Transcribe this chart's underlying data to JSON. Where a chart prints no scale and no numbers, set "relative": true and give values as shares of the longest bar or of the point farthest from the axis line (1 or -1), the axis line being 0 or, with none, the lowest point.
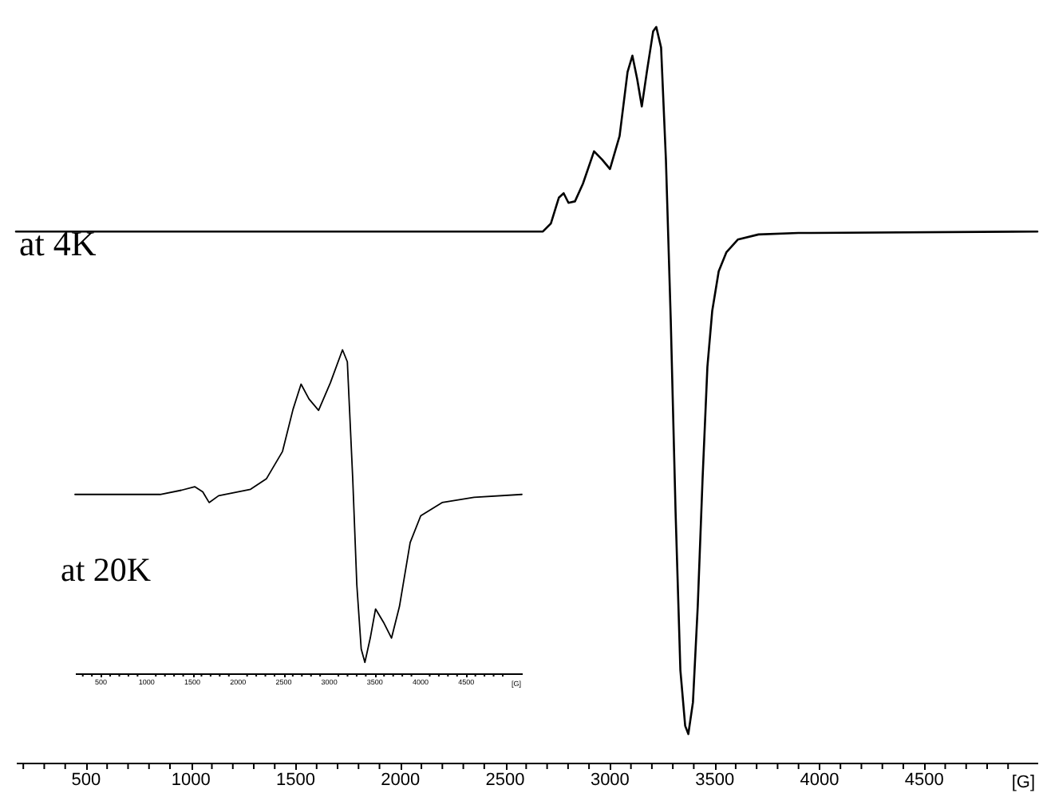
{
  "chart_data": [
    {
      "type": "line",
      "relative": true,
      "tick_labels": "x",
      "xlabel": "[G]",
      "annotations": [
        "at 4K"
      ],
      "xlim": [
        165,
        5040
      ],
      "xticks": [
        {
          "value": 200,
          "label": null
        },
        {
          "value": 300,
          "label": null
        },
        {
          "value": 400,
          "label": null
        },
        500,
        {
          "value": 600,
          "label": null
        },
        {
          "value": 700,
          "label": null
        },
        {
          "value": 800,
          "label": null
        },
        {
          "value": 900,
          "label": null
        },
        1000,
        {
          "value": 1100,
          "label": null
        },
        {
          "value": 1200,
          "label": null
        },
        {
          "value": 1300,
          "label": null
        },
        {
          "value": 1400,
          "label": null
        },
        1500,
        {
          "value": 1600,
          "label": null
        },
        {
          "value": 1700,
          "label": null
        },
        {
          "value": 1800,
          "label": null
        },
        {
          "value": 1900,
          "label": null
        },
        2000,
        {
          "value": 2100,
          "label": null
        },
        {
          "value": 2200,
          "label": null
        },
        {
          "value": 2300,
          "label": null
        },
        {
          "value": 2400,
          "label": null
        },
        2500,
        {
          "value": 2600,
          "label": null
        },
        {
          "value": 2700,
          "label": null
        },
        {
          "value": 2800,
          "label": null
        },
        {
          "value": 2900,
          "label": null
        },
        3000,
        {
          "value": 3100,
          "label": null
        },
        {
          "value": 3200,
          "label": null
        },
        {
          "value": 3300,
          "label": null
        },
        {
          "value": 3400,
          "label": null
        },
        3500,
        {
          "value": 3600,
          "label": null
        },
        {
          "value": 3700,
          "label": null
        },
        {
          "value": 3800,
          "label": null
        },
        {
          "value": 3900,
          "label": null
        },
        4000,
        {
          "value": 4100,
          "label": null
        },
        {
          "value": 4200,
          "label": null
        },
        {
          "value": 4300,
          "label": null
        },
        {
          "value": 4400,
          "label": null
        },
        4500,
        {
          "value": 4600,
          "label": null
        },
        {
          "value": 4700,
          "label": null
        },
        {
          "value": 4800,
          "label": null
        },
        {
          "value": 4900,
          "label": null
        }
      ],
      "x": [
        165,
        2680,
        2718,
        2756,
        2779,
        2802,
        2833,
        2871,
        2924,
        2962,
        3000,
        3046,
        3084,
        3107,
        3130,
        3152,
        3176,
        3206,
        3221,
        3244,
        3267,
        3290,
        3313,
        3336,
        3359,
        3374,
        3396,
        3419,
        3442,
        3465,
        3488,
        3519,
        3556,
        3610,
        3709,
        3899,
        5040
      ],
      "series": [
        {
          "color": "#000000",
          "values": [
            0.722,
            0.722,
            0.733,
            0.768,
            0.774,
            0.761,
            0.763,
            0.787,
            0.831,
            0.82,
            0.807,
            0.852,
            0.939,
            0.961,
            0.929,
            0.892,
            0.939,
            0.994,
            1,
            0.972,
            0.82,
            0.603,
            0.342,
            0.126,
            0.05,
            0.039,
            0.082,
            0.213,
            0.386,
            0.538,
            0.614,
            0.668,
            0.694,
            0.711,
            0.718,
            0.72,
            0.722
          ]
        }
      ]
    },
    {
      "type": "line",
      "relative": true,
      "tick_labels": "x",
      "xlabel": "[G]",
      "annotations": [
        "at 20K"
      ],
      "xlim": [
        215,
        5110
      ],
      "xticks": [
        {
          "value": 300,
          "label": null
        },
        {
          "value": 400,
          "label": null
        },
        500,
        {
          "value": 600,
          "label": null
        },
        {
          "value": 700,
          "label": null
        },
        {
          "value": 800,
          "label": null
        },
        {
          "value": 900,
          "label": null
        },
        1000,
        {
          "value": 1100,
          "label": null
        },
        {
          "value": 1200,
          "label": null
        },
        {
          "value": 1300,
          "label": null
        },
        {
          "value": 1400,
          "label": null
        },
        1500,
        {
          "value": 1600,
          "label": null
        },
        {
          "value": 1700,
          "label": null
        },
        {
          "value": 1800,
          "label": null
        },
        {
          "value": 1900,
          "label": null
        },
        2000,
        {
          "value": 2100,
          "label": null
        },
        {
          "value": 2200,
          "label": null
        },
        {
          "value": 2300,
          "label": null
        },
        {
          "value": 2400,
          "label": null
        },
        2500,
        {
          "value": 2600,
          "label": null
        },
        {
          "value": 2700,
          "label": null
        },
        {
          "value": 2800,
          "label": null
        },
        {
          "value": 2900,
          "label": null
        },
        3000,
        {
          "value": 3100,
          "label": null
        },
        {
          "value": 3200,
          "label": null
        },
        {
          "value": 3300,
          "label": null
        },
        {
          "value": 3400,
          "label": null
        },
        3500,
        {
          "value": 3600,
          "label": null
        },
        {
          "value": 3700,
          "label": null
        },
        {
          "value": 3800,
          "label": null
        },
        {
          "value": 3900,
          "label": null
        },
        4000,
        {
          "value": 4100,
          "label": null
        },
        {
          "value": 4200,
          "label": null
        },
        {
          "value": 4300,
          "label": null
        },
        {
          "value": 4400,
          "label": null
        },
        4500,
        {
          "value": 4600,
          "label": null
        },
        {
          "value": 4700,
          "label": null
        },
        {
          "value": 4800,
          "label": null
        },
        {
          "value": 4900,
          "label": null
        }
      ],
      "x": [
        215,
        1147,
        1379,
        1526,
        1614,
        1684,
        1788,
        2138,
        2313,
        2488,
        2603,
        2691,
        2778,
        2883,
        3012,
        3145,
        3198,
        3257,
        3302,
        3350,
        3390,
        3449,
        3507,
        3594,
        3682,
        3769,
        3886,
        4002,
        4236,
        4586,
        5110
      ],
      "series": [
        {
          "color": "#000000",
          "values": [
            0.553,
            0.553,
            0.566,
            0.577,
            0.561,
            0.528,
            0.549,
            0.569,
            0.602,
            0.686,
            0.816,
            0.894,
            0.848,
            0.813,
            0.898,
            1,
            0.963,
            0.602,
            0.273,
            0.075,
            0.034,
            0.109,
            0.199,
            0.158,
            0.109,
            0.207,
            0.404,
            0.487,
            0.528,
            0.544,
            0.553
          ]
        }
      ]
    }
  ]
}
